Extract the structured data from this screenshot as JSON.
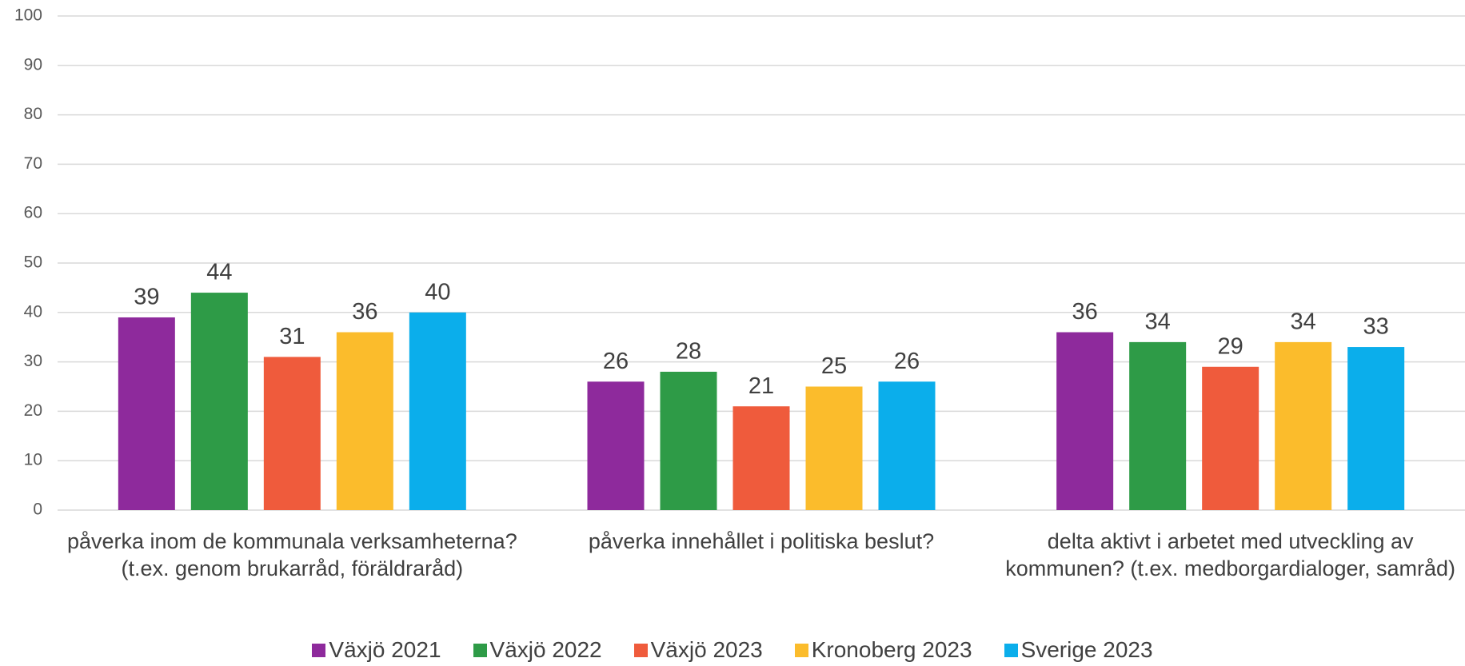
{
  "chart_data": {
    "type": "bar",
    "categories": [
      "påverka inom de kommunala verksamheterna? (t.ex. genom brukarråd, föräldraråd)",
      "påverka innehållet i politiska beslut?",
      "delta aktivt i arbetet med utveckling av kommunen? (t.ex. medborgardialoger, samråd)"
    ],
    "series": [
      {
        "name": "Växjö 2021",
        "color": "#8e2a9c",
        "values": [
          39,
          26,
          36
        ]
      },
      {
        "name": "Växjö 2022",
        "color": "#2e9b47",
        "values": [
          44,
          28,
          34
        ]
      },
      {
        "name": "Växjö 2023",
        "color": "#ef5b3c",
        "values": [
          31,
          21,
          29
        ]
      },
      {
        "name": "Kronoberg 2023",
        "color": "#fbbc2c",
        "values": [
          36,
          25,
          34
        ]
      },
      {
        "name": "Sverige 2023",
        "color": "#0baeeb",
        "values": [
          40,
          26,
          33
        ]
      }
    ],
    "ylim": [
      0,
      100
    ],
    "yticks": [
      0,
      10,
      20,
      30,
      40,
      50,
      60,
      70,
      80,
      90,
      100
    ],
    "grid": true,
    "legend": "bottom"
  }
}
